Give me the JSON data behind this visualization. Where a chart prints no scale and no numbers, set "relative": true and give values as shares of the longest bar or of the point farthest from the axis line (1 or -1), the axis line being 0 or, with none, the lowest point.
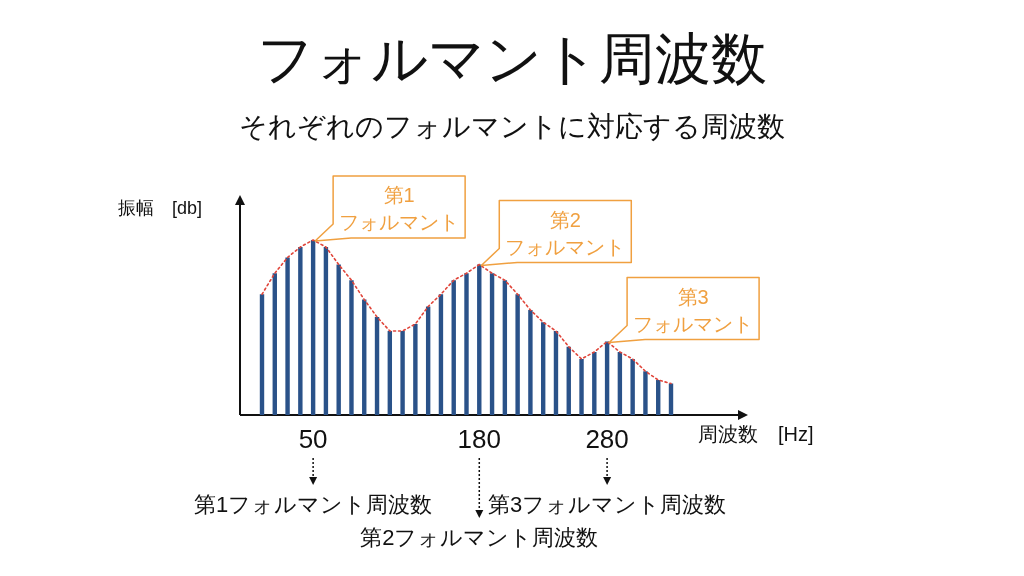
{
  "chart_data": {
    "type": "bar",
    "title": "フォルマント周波数",
    "subtitle": "それぞれのフォルマントに対応する周波数",
    "xlabel": "周波数　[Hz]",
    "ylabel": "振幅　[db]",
    "relative": true,
    "grid": false,
    "categories": [
      null,
      null,
      null,
      null,
      "50",
      null,
      null,
      null,
      null,
      null,
      null,
      null,
      null,
      null,
      null,
      null,
      null,
      "180",
      null,
      null,
      null,
      null,
      null,
      null,
      null,
      null,
      null,
      "280",
      null,
      null,
      null,
      null,
      null
    ],
    "series": [
      {
        "color": "#2a5289",
        "values": [
          0.69,
          0.81,
          0.9,
          0.96,
          1,
          0.96,
          0.86,
          0.77,
          0.66,
          0.56,
          0.48,
          0.48,
          0.52,
          0.62,
          0.69,
          0.77,
          0.81,
          0.86,
          0.81,
          0.77,
          0.69,
          0.6,
          0.53,
          0.48,
          0.39,
          0.32,
          0.36,
          0.42,
          0.36,
          0.32,
          0.25,
          0.2,
          0.18
        ]
      },
      {
        "type": "line",
        "color": "#e0453a",
        "line_style": "dotted",
        "values": [
          0.69,
          0.81,
          0.9,
          0.96,
          1,
          0.96,
          0.86,
          0.77,
          0.66,
          0.56,
          0.48,
          0.48,
          0.52,
          0.62,
          0.69,
          0.77,
          0.81,
          0.86,
          0.81,
          0.77,
          0.69,
          0.6,
          0.53,
          0.48,
          0.39,
          0.32,
          0.36,
          0.42,
          0.36,
          0.32,
          0.25,
          0.2,
          0.18
        ]
      }
    ],
    "annotations": [
      {
        "text": "第1\nフォルマント",
        "x": "50",
        "y": 1
      },
      {
        "text": "第2\nフォルマント",
        "x": "180",
        "y": 0.86
      },
      {
        "text": "第3\nフォルマント",
        "x": "280",
        "y": 0.42
      },
      {
        "text": "第1フォルマント周波数",
        "x": "50"
      },
      {
        "text": "第2フォルマント周波数",
        "x": "180"
      },
      {
        "text": "第3フォルマント周波数",
        "x": "280"
      }
    ]
  }
}
